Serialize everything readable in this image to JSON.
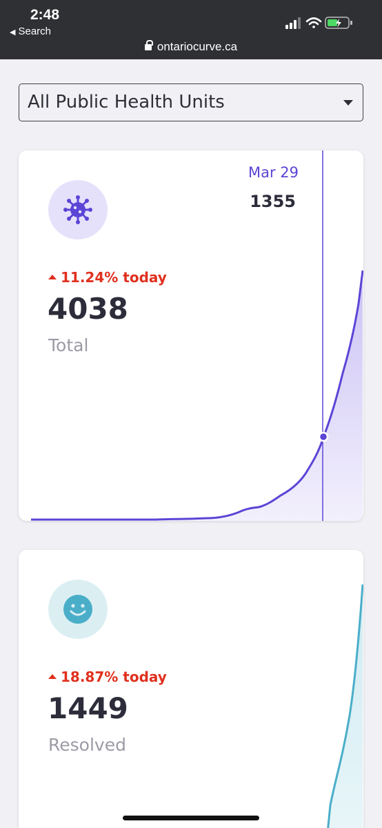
{
  "status_bar": {
    "time": "2:48",
    "back_label": "Search",
    "url": "ontariocurve.ca"
  },
  "region_select": {
    "selected": "All Public Health Units"
  },
  "cards": [
    {
      "id": "total",
      "icon": "virus-icon",
      "accent": "#5b45d6",
      "icon_bg": "#e6e1fb",
      "change_text": "11.24% today",
      "change_color": "#e0301e",
      "value": "4038",
      "label": "Total",
      "tooltip": {
        "date": "Mar 29",
        "value": "1355"
      }
    },
    {
      "id": "resolved",
      "icon": "smiley-icon",
      "accent": "#4aaec9",
      "icon_bg": "#dbeff3",
      "change_text": "18.87% today",
      "change_color": "#e0301e",
      "value": "1449",
      "label": "Resolved"
    }
  ]
}
